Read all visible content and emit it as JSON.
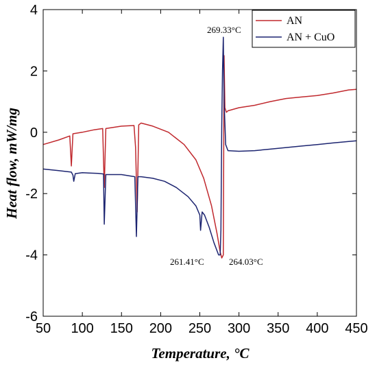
{
  "chart_data": {
    "type": "line",
    "xlabel": "Temperature, °C",
    "ylabel": "Heat flow, mW/mg",
    "xlim": [
      50,
      450
    ],
    "ylim": [
      -6,
      4
    ],
    "x_ticks": [
      "50",
      "100",
      "150",
      "200",
      "250",
      "300",
      "350",
      "400",
      "450"
    ],
    "y_ticks": [
      "4",
      "2",
      "0",
      "-2",
      "-4",
      "-6"
    ],
    "x_tick_values": [
      50,
      100,
      150,
      200,
      250,
      300,
      350,
      400,
      450
    ],
    "y_tick_values": [
      4,
      2,
      0,
      -2,
      -4,
      -6
    ],
    "grid": false,
    "legend_position": "top-right",
    "series": [
      {
        "name": "AN",
        "color": "#c0282d",
        "points": [
          [
            50,
            -0.4
          ],
          [
            70,
            -0.25
          ],
          [
            84,
            -0.12
          ],
          [
            86,
            -1.1
          ],
          [
            88,
            -0.05
          ],
          [
            100,
            0.0
          ],
          [
            115,
            0.08
          ],
          [
            126,
            0.12
          ],
          [
            128,
            -1.8
          ],
          [
            130,
            0.12
          ],
          [
            150,
            0.2
          ],
          [
            166,
            0.22
          ],
          [
            168,
            -0.5
          ],
          [
            170,
            -2.6
          ],
          [
            172,
            0.24
          ],
          [
            175,
            0.3
          ],
          [
            190,
            0.2
          ],
          [
            210,
            0.0
          ],
          [
            230,
            -0.4
          ],
          [
            245,
            -0.9
          ],
          [
            255,
            -1.5
          ],
          [
            265,
            -2.4
          ],
          [
            272,
            -3.3
          ],
          [
            276,
            -3.9
          ],
          [
            278,
            -4.1
          ],
          [
            280,
            -4.0
          ],
          [
            281,
            2.5
          ],
          [
            282,
            0.8
          ],
          [
            284,
            0.65
          ],
          [
            286,
            0.7
          ],
          [
            300,
            0.8
          ],
          [
            320,
            0.88
          ],
          [
            340,
            1.0
          ],
          [
            360,
            1.1
          ],
          [
            380,
            1.15
          ],
          [
            400,
            1.2
          ],
          [
            420,
            1.28
          ],
          [
            440,
            1.38
          ],
          [
            450,
            1.4
          ]
        ]
      },
      {
        "name": "AN + CuO",
        "color": "#1c2470",
        "points": [
          [
            50,
            -1.2
          ],
          [
            70,
            -1.25
          ],
          [
            86,
            -1.3
          ],
          [
            88,
            -1.4
          ],
          [
            89,
            -1.6
          ],
          [
            91,
            -1.35
          ],
          [
            100,
            -1.32
          ],
          [
            120,
            -1.34
          ],
          [
            127,
            -1.36
          ],
          [
            128,
            -3.0
          ],
          [
            130,
            -1.38
          ],
          [
            150,
            -1.38
          ],
          [
            167,
            -1.45
          ],
          [
            169,
            -3.4
          ],
          [
            171,
            -1.45
          ],
          [
            175,
            -1.45
          ],
          [
            190,
            -1.5
          ],
          [
            205,
            -1.6
          ],
          [
            220,
            -1.8
          ],
          [
            235,
            -2.1
          ],
          [
            245,
            -2.4
          ],
          [
            250,
            -2.7
          ],
          [
            251,
            -3.2
          ],
          [
            253,
            -2.6
          ],
          [
            256,
            -2.7
          ],
          [
            262,
            -3.1
          ],
          [
            268,
            -3.6
          ],
          [
            274,
            -4.0
          ],
          [
            276,
            -4.0
          ],
          [
            277,
            -3.2
          ],
          [
            278,
            0.2
          ],
          [
            279,
            2.0
          ],
          [
            280,
            3.1
          ],
          [
            281,
            1.0
          ],
          [
            282,
            0.3
          ],
          [
            283,
            -0.4
          ],
          [
            286,
            -0.6
          ],
          [
            300,
            -0.62
          ],
          [
            320,
            -0.6
          ],
          [
            340,
            -0.55
          ],
          [
            360,
            -0.5
          ],
          [
            380,
            -0.45
          ],
          [
            400,
            -0.4
          ],
          [
            420,
            -0.35
          ],
          [
            440,
            -0.3
          ],
          [
            450,
            -0.28
          ]
        ]
      }
    ],
    "annotations": [
      {
        "text": "269.33°C",
        "x": 280,
        "y": 3.1
      },
      {
        "text": "261.41°C",
        "x": 274,
        "y": -4.0
      },
      {
        "text": "264.03°C",
        "x": 278,
        "y": -4.1
      }
    ]
  }
}
